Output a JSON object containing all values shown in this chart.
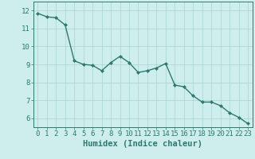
{
  "x": [
    0,
    1,
    2,
    3,
    4,
    5,
    6,
    7,
    8,
    9,
    10,
    11,
    12,
    13,
    14,
    15,
    16,
    17,
    18,
    19,
    20,
    21,
    22,
    23
  ],
  "y": [
    11.85,
    11.65,
    11.6,
    11.2,
    9.2,
    9.0,
    8.95,
    8.65,
    9.1,
    9.45,
    9.1,
    8.55,
    8.65,
    8.8,
    9.05,
    7.85,
    7.75,
    7.25,
    6.9,
    6.9,
    6.7,
    6.3,
    6.05,
    5.7
  ],
  "line_color": "#2d7a6e",
  "marker": "D",
  "marker_size": 2.0,
  "linewidth": 1.0,
  "bg_color": "#ceeeed",
  "grid_color": "#aad4d0",
  "tick_color": "#2d7a6e",
  "label_color": "#2d7a6e",
  "xlabel": "Humidex (Indice chaleur)",
  "xlabel_fontsize": 7.5,
  "xlim": [
    -0.5,
    23.5
  ],
  "ylim": [
    5.5,
    12.5
  ],
  "yticks": [
    6,
    7,
    8,
    9,
    10,
    11,
    12
  ],
  "xticks": [
    0,
    1,
    2,
    3,
    4,
    5,
    6,
    7,
    8,
    9,
    10,
    11,
    12,
    13,
    14,
    15,
    16,
    17,
    18,
    19,
    20,
    21,
    22,
    23
  ],
  "tick_fontsize": 6.5
}
